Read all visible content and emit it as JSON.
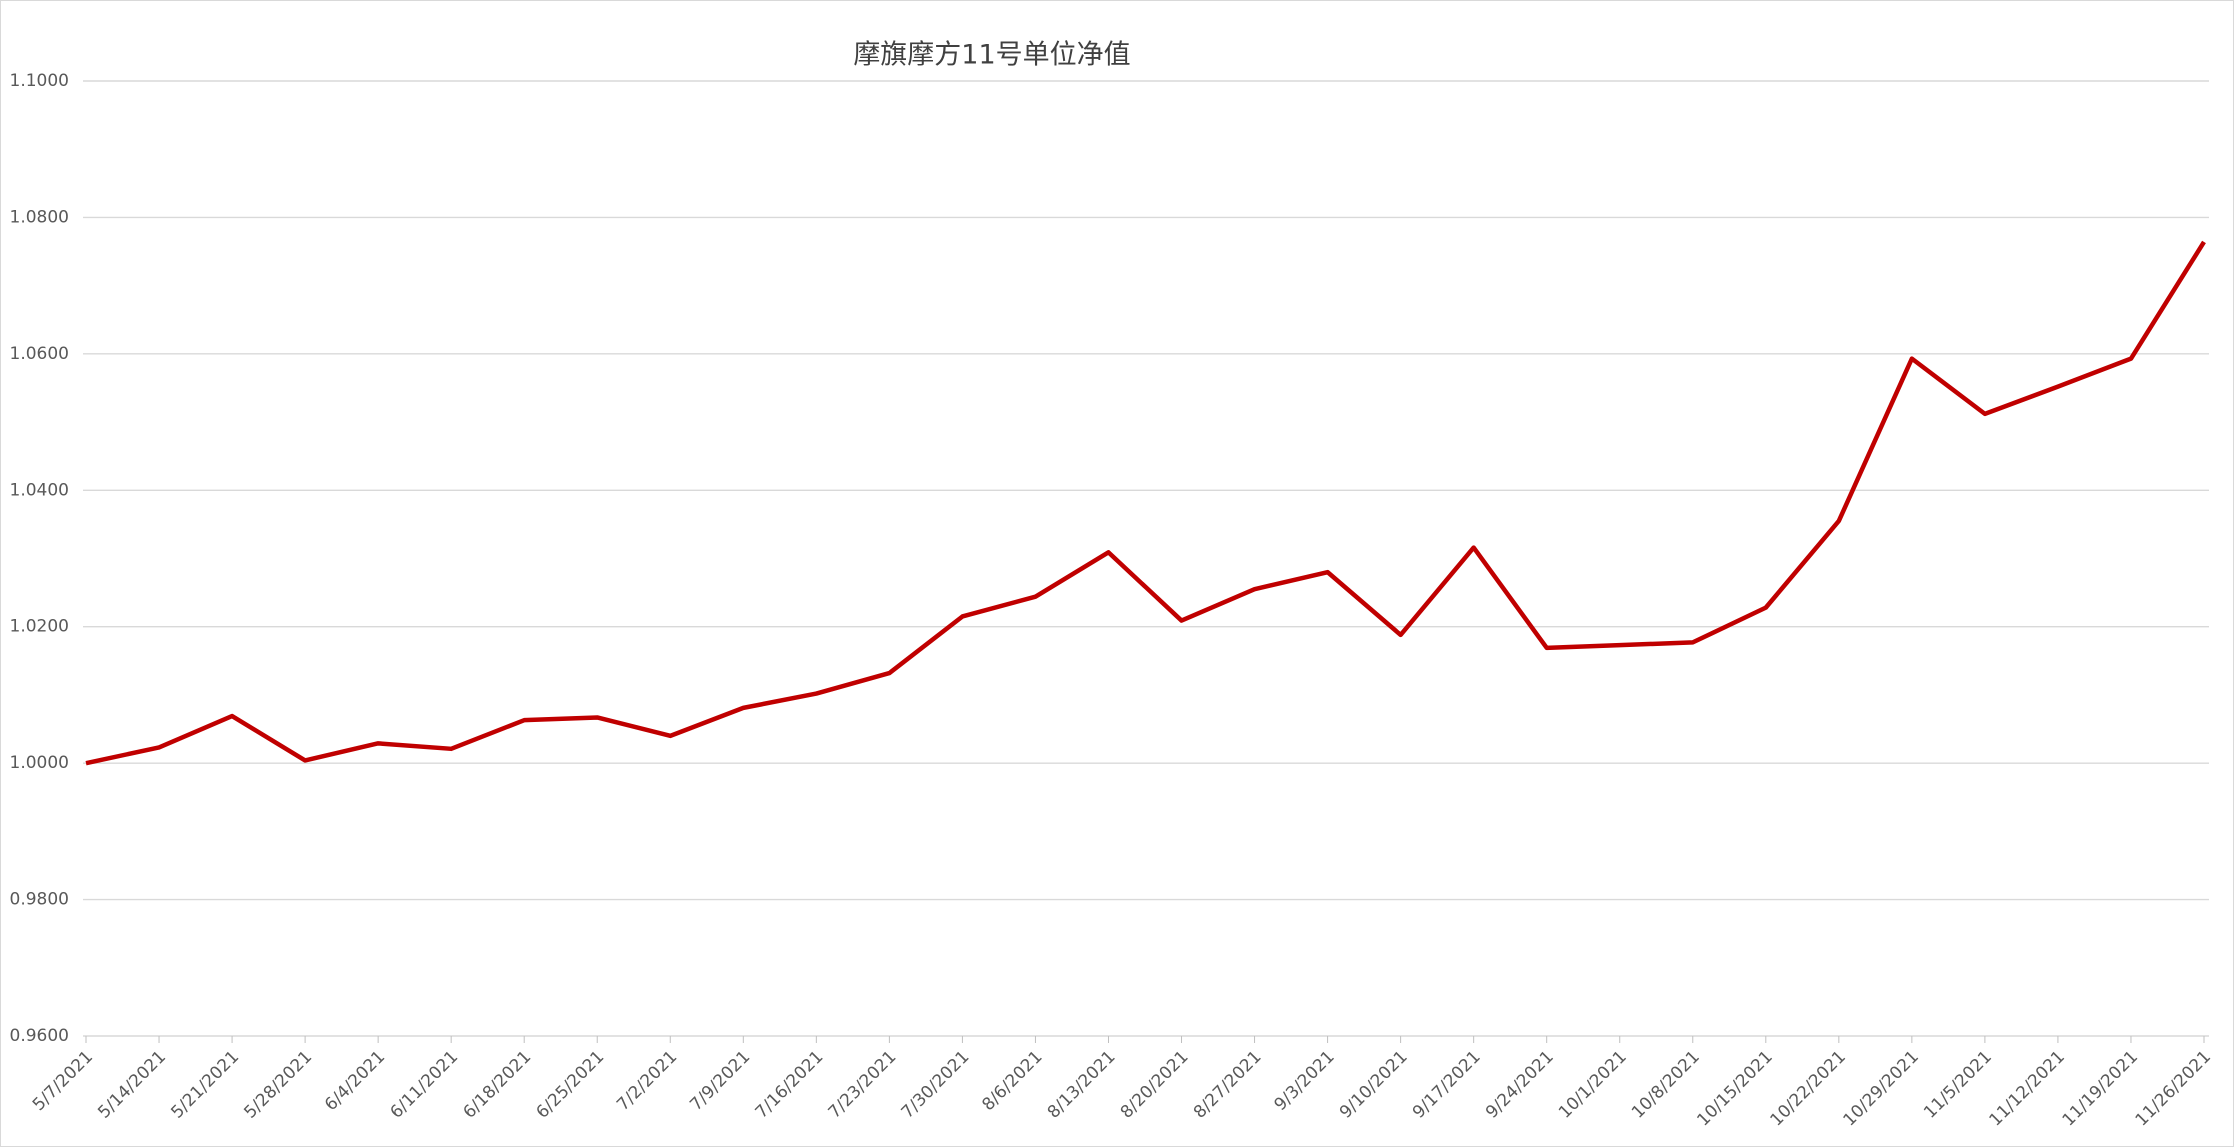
{
  "chart_data": {
    "type": "line",
    "title": "摩旗摩方11号单位净值",
    "categories": [
      "5/7/2021",
      "5/14/2021",
      "5/21/2021",
      "5/28/2021",
      "6/4/2021",
      "6/11/2021",
      "6/18/2021",
      "6/25/2021",
      "7/2/2021",
      "7/9/2021",
      "7/16/2021",
      "7/23/2021",
      "7/30/2021",
      "8/6/2021",
      "8/13/2021",
      "8/20/2021",
      "8/27/2021",
      "9/3/2021",
      "9/10/2021",
      "9/17/2021",
      "9/24/2021",
      "10/1/2021",
      "10/8/2021",
      "10/15/2021",
      "10/22/2021",
      "10/29/2021",
      "11/5/2021",
      "11/12/2021",
      "11/19/2021",
      "11/26/2021"
    ],
    "series": [
      {
        "color": "#c00000",
        "values": [
          1.0,
          1.0023,
          1.0069,
          1.0004,
          1.0029,
          1.0021,
          1.0063,
          1.0067,
          1.004,
          1.0081,
          1.0102,
          1.0132,
          1.0215,
          1.0244,
          1.0309,
          1.0209,
          1.0255,
          1.028,
          1.0188,
          1.0316,
          1.0169,
          1.0173,
          1.0177,
          1.0228,
          1.0355,
          1.0593,
          1.0512,
          1.0552,
          1.0593,
          1.0764
        ]
      }
    ],
    "ylim": [
      0.96,
      1.1
    ],
    "yticks": [
      {
        "value": 0.96,
        "label": "0.9600"
      },
      {
        "value": 0.98,
        "label": "0.9800"
      },
      {
        "value": 1.0,
        "label": "1.0000"
      },
      {
        "value": 1.02,
        "label": "1.0200"
      },
      {
        "value": 1.04,
        "label": "1.0400"
      },
      {
        "value": 1.06,
        "label": "1.0600"
      },
      {
        "value": 1.08,
        "label": "1.0800"
      },
      {
        "value": 1.1,
        "label": "1.1000"
      }
    ],
    "grid": true
  }
}
